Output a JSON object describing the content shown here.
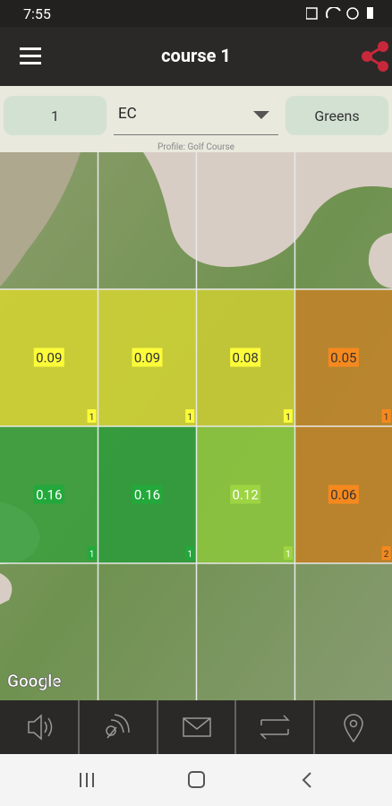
{
  "status": {
    "time": "7:55"
  },
  "appbar": {
    "title": "course 1"
  },
  "controls": {
    "field": "1",
    "metric": "EC",
    "button": "Greens",
    "profile": "Profile: Golf Course"
  },
  "map": {
    "attribution": "Google"
  },
  "grid": {
    "rows": [
      [
        {
          "value": "0.09",
          "count": "1",
          "color": "#d2d133",
          "label_color": "#fbfb3a",
          "text_color": "#333"
        },
        {
          "value": "0.09",
          "count": "1",
          "color": "#cfd035",
          "label_color": "#fbfb3a",
          "text_color": "#333"
        },
        {
          "value": "0.08",
          "count": "1",
          "color": "#c9cb34",
          "label_color": "#fbfb3a",
          "text_color": "#333"
        },
        {
          "value": "0.05",
          "count": "1",
          "color": "#c0832a",
          "label_color": "#f5891e",
          "text_color": "#333"
        }
      ],
      [
        {
          "value": "0.16",
          "count": "1",
          "color": "#3d9f3f",
          "label_color": "#23a83b",
          "text_color": "#fff"
        },
        {
          "value": "0.16",
          "count": "1",
          "color": "#2f9b3b",
          "label_color": "#23a83b",
          "text_color": "#fff"
        },
        {
          "value": "0.12",
          "count": "1",
          "color": "#8cc43e",
          "label_color": "#9dd442",
          "text_color": "#fff"
        },
        {
          "value": "0.06",
          "count": "2",
          "color": "#c08128",
          "label_color": "#f5891e",
          "text_color": "#333"
        }
      ]
    ]
  }
}
